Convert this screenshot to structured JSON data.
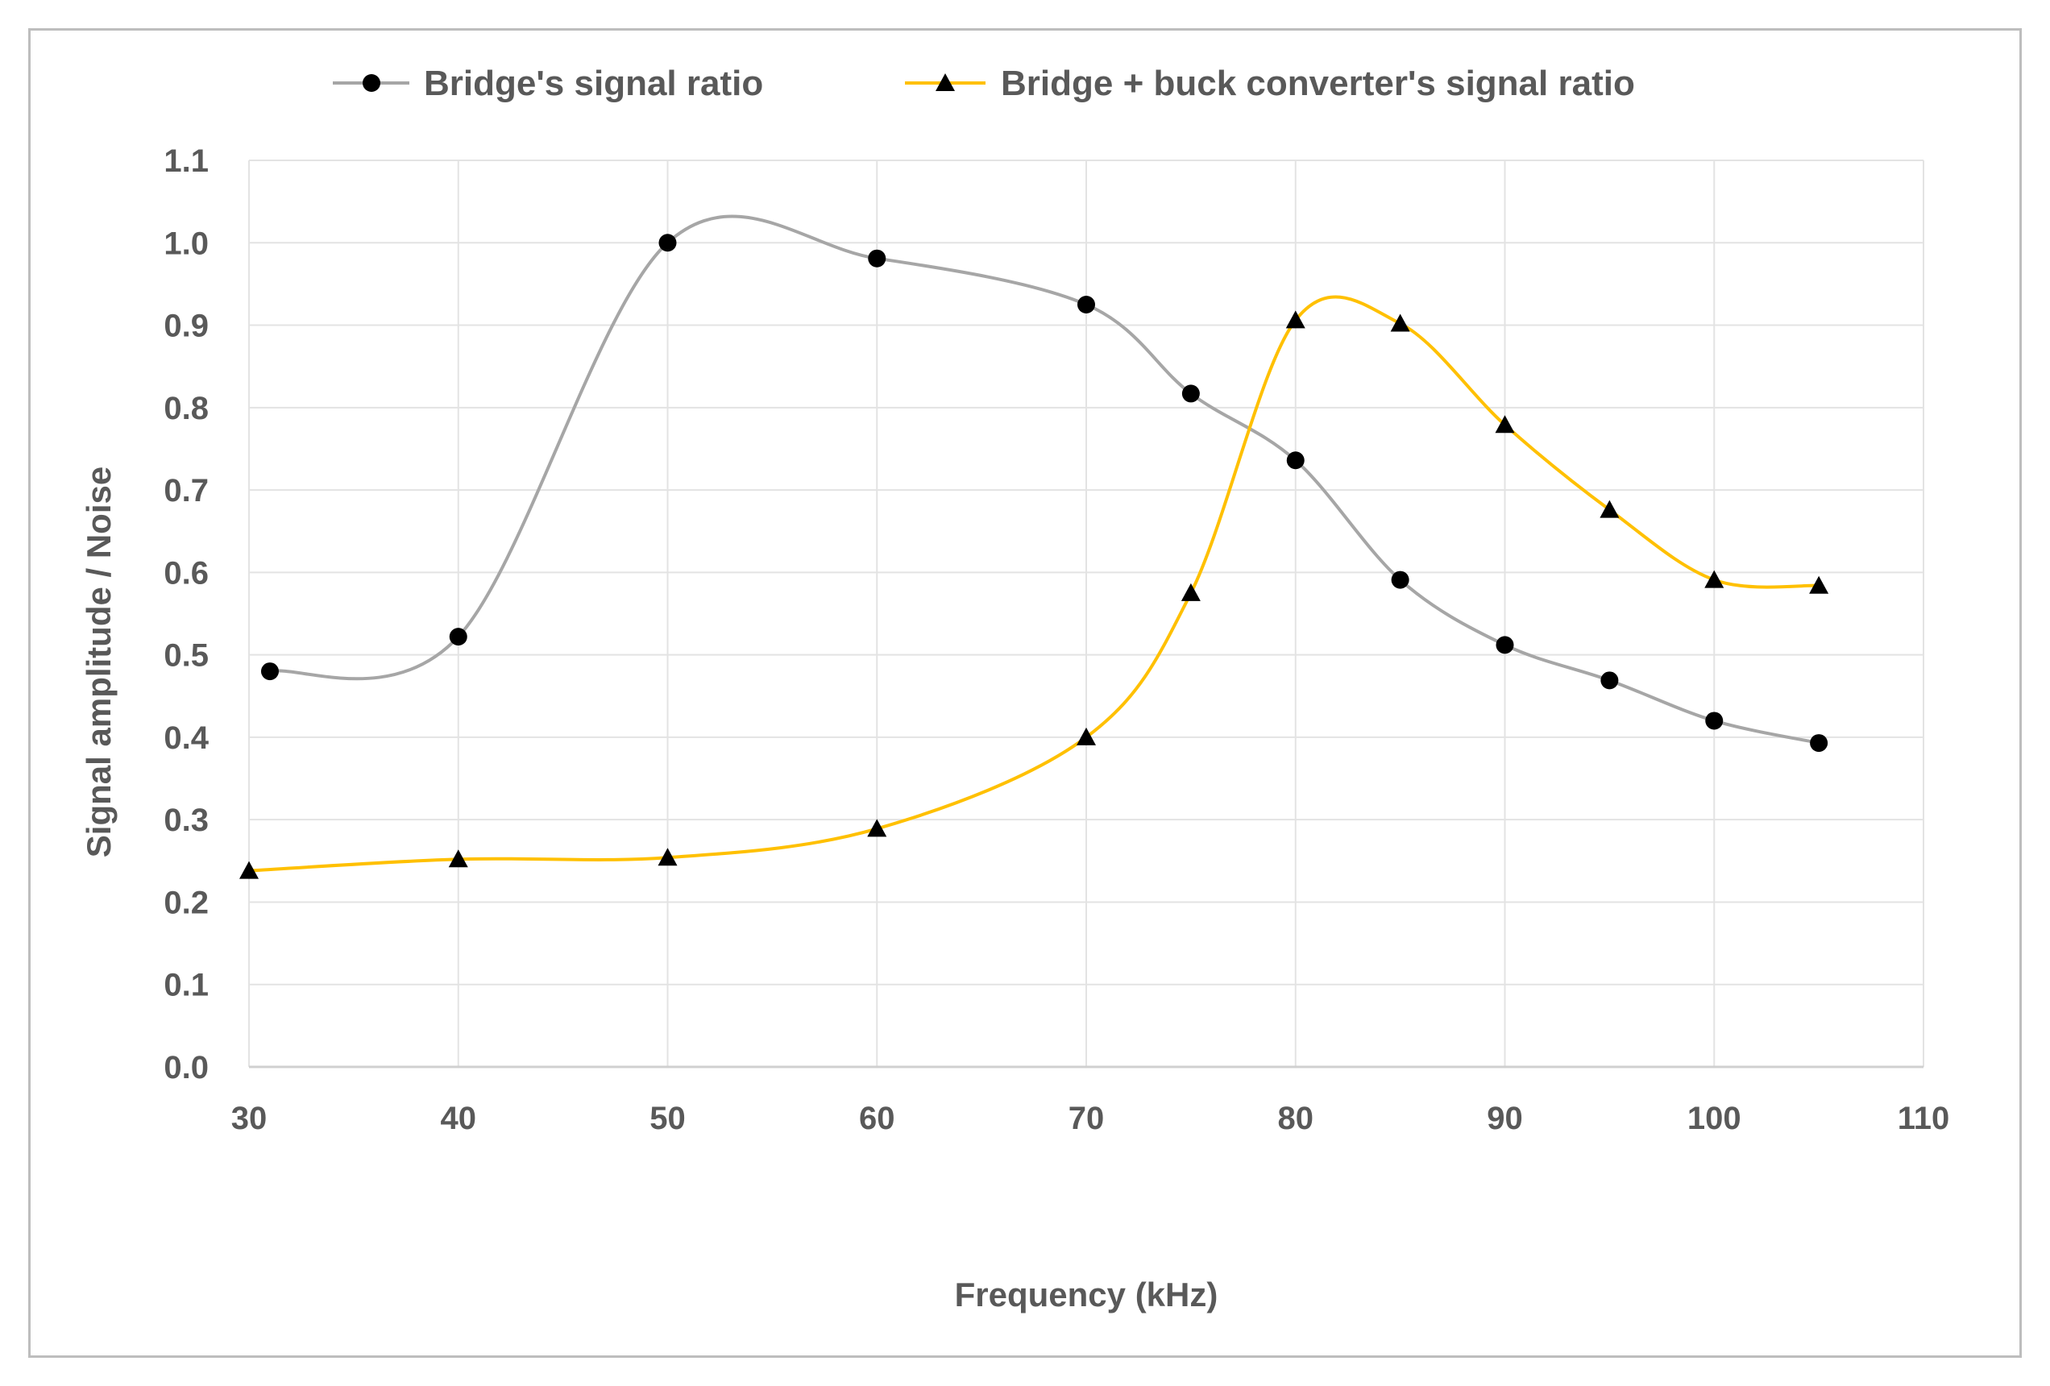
{
  "chart_data": {
    "type": "line",
    "title": "",
    "xlabel": "Frequency (kHz)",
    "ylabel": "Signal amplitude / Noise",
    "xlim": [
      30,
      110
    ],
    "ylim": [
      0.0,
      1.1
    ],
    "x_ticks": [
      "30",
      "40",
      "50",
      "60",
      "70",
      "80",
      "90",
      "100",
      "110"
    ],
    "y_ticks": [
      "0.0",
      "0.1",
      "0.2",
      "0.3",
      "0.4",
      "0.5",
      "0.6",
      "0.7",
      "0.8",
      "0.9",
      "1.0",
      "1.1"
    ],
    "grid": true,
    "smooth": true,
    "legend_position": "top",
    "series": [
      {
        "name": "Bridge's signal ratio",
        "color": "#a6a6a6",
        "marker": "circle",
        "x": [
          31,
          40,
          50,
          60,
          70,
          75,
          80,
          85,
          90,
          95,
          100,
          105
        ],
        "y": [
          0.48,
          0.522,
          1.0,
          0.981,
          0.925,
          0.817,
          0.736,
          0.591,
          0.512,
          0.469,
          0.42,
          0.393
        ]
      },
      {
        "name": "Bridge + buck converter's signal ratio",
        "color": "#ffc000",
        "marker": "triangle",
        "x": [
          30,
          40,
          50,
          60,
          70,
          75,
          80,
          85,
          90,
          95,
          100,
          105
        ],
        "y": [
          0.238,
          0.252,
          0.254,
          0.289,
          0.4,
          0.575,
          0.906,
          0.902,
          0.779,
          0.676,
          0.591,
          0.584
        ]
      }
    ]
  }
}
